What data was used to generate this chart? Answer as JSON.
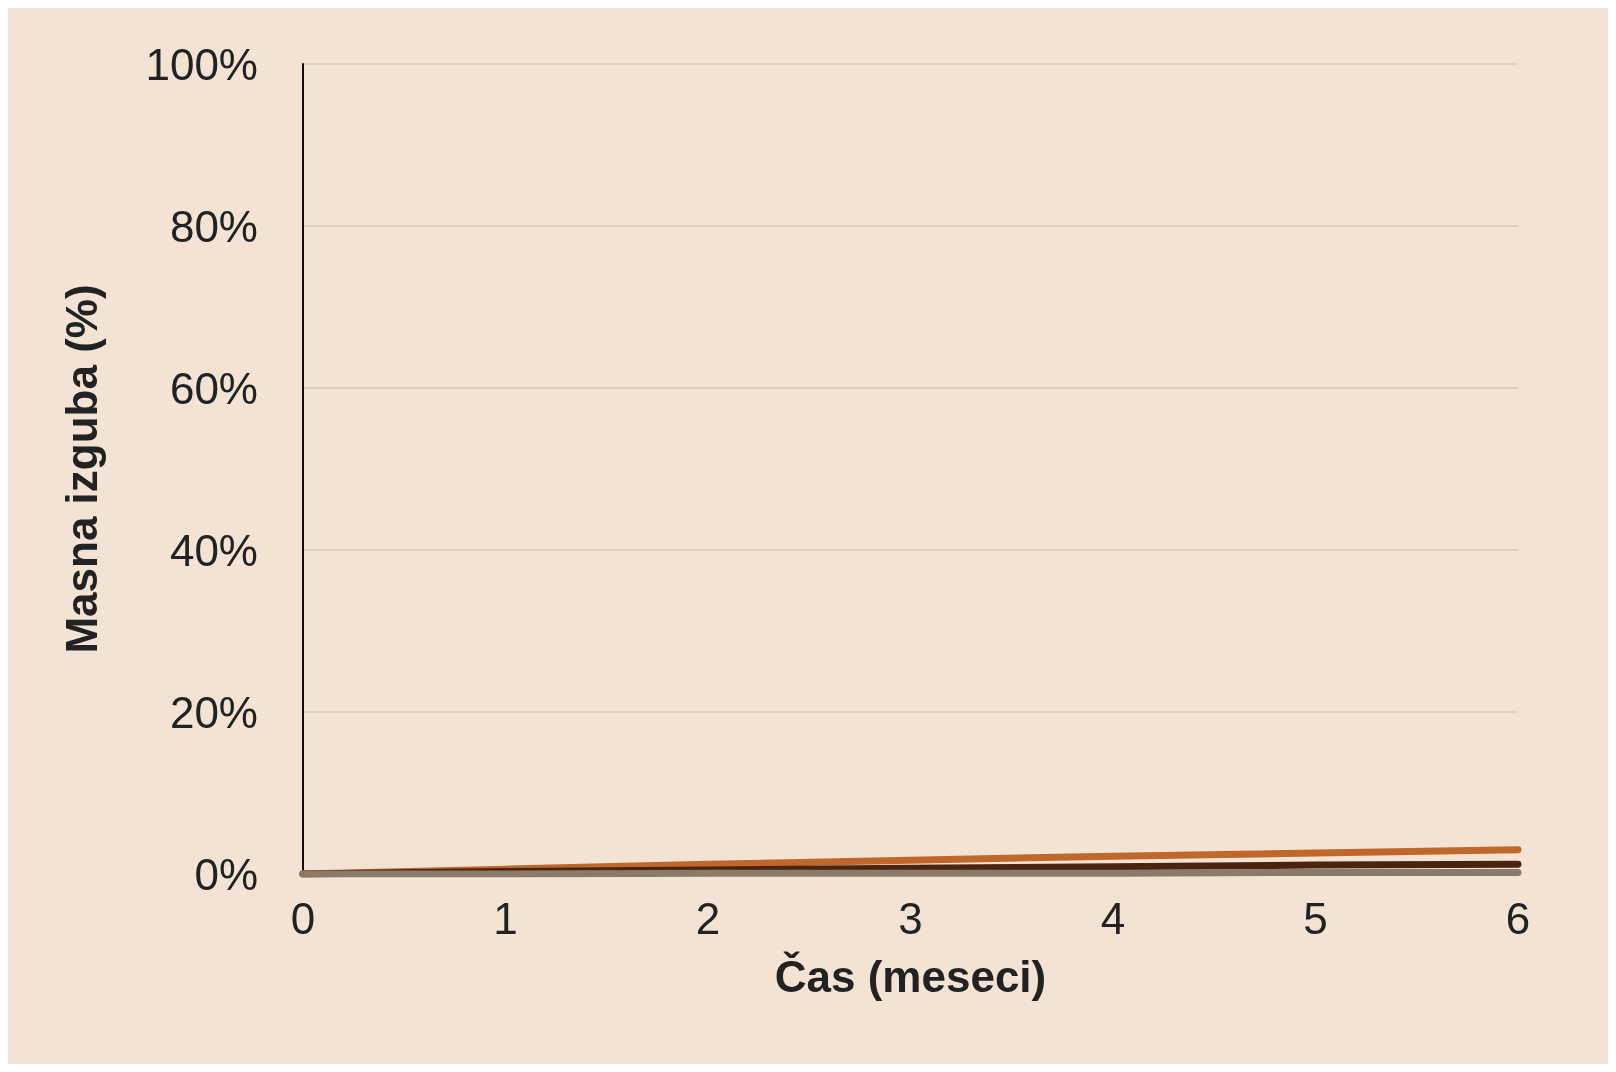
{
  "chart_data": {
    "type": "line",
    "xlabel": "Čas (meseci)",
    "ylabel": "Masna izguba (%)",
    "x": [
      0,
      1,
      2,
      3,
      4,
      5,
      6
    ],
    "series": [
      {
        "color": "#c0682c",
        "values": [
          0,
          0.6,
          1.2,
          1.7,
          2.2,
          2.6,
          3.0
        ]
      },
      {
        "color": "#4a2410",
        "values": [
          0,
          0.3,
          0.5,
          0.7,
          0.9,
          1.1,
          1.2
        ]
      },
      {
        "color": "#8a7a68",
        "values": [
          0,
          0,
          0.1,
          0.1,
          0.1,
          0.2,
          0.2
        ]
      }
    ],
    "xlim": [
      0,
      6
    ],
    "xticks": [
      0,
      1,
      2,
      3,
      4,
      5,
      6
    ],
    "ylim": [
      0,
      100
    ],
    "yticks": [
      {
        "value": 0,
        "label": "0%"
      },
      {
        "value": 20,
        "label": "20%"
      },
      {
        "value": 40,
        "label": "40%"
      },
      {
        "value": 60,
        "label": "60%"
      },
      {
        "value": 80,
        "label": "80%"
      },
      {
        "value": 100,
        "label": "100%"
      }
    ],
    "grid": "y",
    "marker": "none",
    "line_style": "solid"
  }
}
